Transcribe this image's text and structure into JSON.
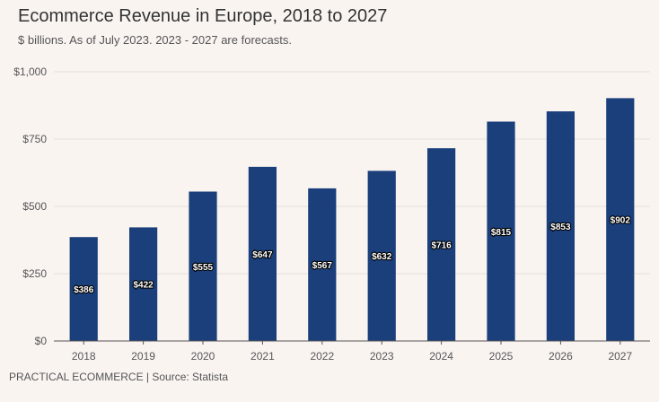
{
  "chart_data": {
    "type": "bar",
    "title": "Ecommerce Revenue in Europe, 2018 to 2027",
    "subtitle": "$ billions. As of July 2023. 2023 - 2027 are forecasts.",
    "categories": [
      "2018",
      "2019",
      "2020",
      "2021",
      "2022",
      "2023",
      "2024",
      "2025",
      "2026",
      "2027"
    ],
    "values": [
      386,
      422,
      555,
      647,
      567,
      632,
      716,
      815,
      853,
      902
    ],
    "data_labels": [
      "$386",
      "$422",
      "$555",
      "$647",
      "$567",
      "$632",
      "$716",
      "$815",
      "$853",
      "$902"
    ],
    "ylim": [
      0,
      1000
    ],
    "y_ticks": [
      0,
      250,
      500,
      750,
      1000
    ],
    "y_tick_labels": [
      "$0",
      "$250",
      "$500",
      "$750",
      "$1,000"
    ],
    "xlabel": "",
    "ylabel": "",
    "grid": true,
    "bar_color": "#1a3f7a",
    "footer": "PRACTICAL ECOMMERCE | Source: Statista"
  }
}
